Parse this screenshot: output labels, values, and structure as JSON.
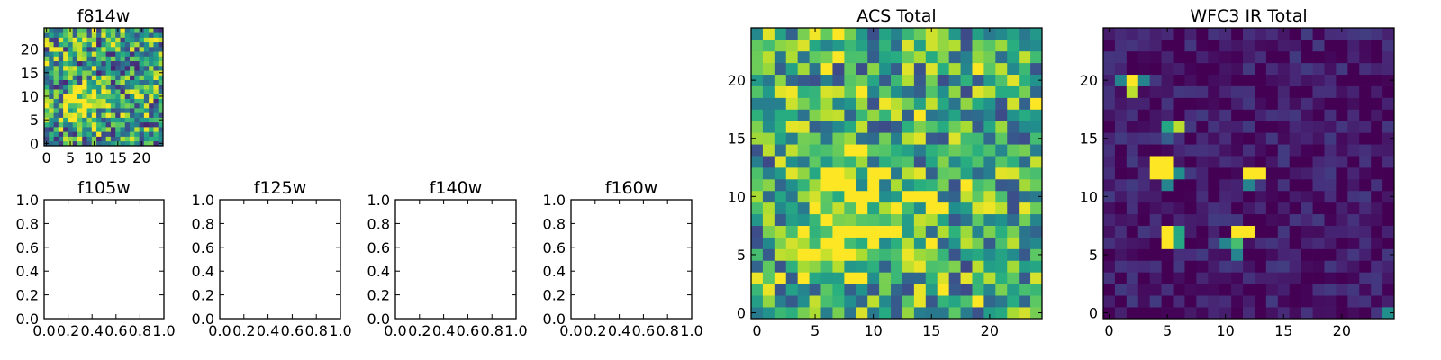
{
  "chart_data": [
    {
      "type": "heatmap",
      "title": "f814w",
      "size": 25,
      "xticks": [
        "0",
        "5",
        "10",
        "15",
        "20"
      ],
      "yticks": [
        "0",
        "5",
        "10",
        "15",
        "20"
      ],
      "source": {
        "kind": "noise",
        "seed": 11,
        "base": 0.55,
        "spread": 0.45,
        "blobs": [
          {
            "x": 7,
            "y": 8,
            "r": 2.2,
            "amp": 0.65
          },
          {
            "x": 11,
            "y": 10,
            "r": 1.5,
            "amp": 0.3
          }
        ]
      }
    },
    {
      "type": "heatmap",
      "title": "ACS Total",
      "size": 25,
      "xticks": [
        "0",
        "5",
        "10",
        "15",
        "20"
      ],
      "yticks": [
        "0",
        "5",
        "10",
        "15",
        "20"
      ],
      "source": {
        "kind": "noise",
        "seed": 23,
        "base": 0.62,
        "spread": 0.4,
        "blobs": [
          {
            "x": 7.5,
            "y": 7.5,
            "r": 2.4,
            "amp": 0.55
          },
          {
            "x": 7,
            "y": 13,
            "r": 1.8,
            "amp": 0.3
          },
          {
            "x": 13,
            "y": 9,
            "r": 1.6,
            "amp": 0.3
          }
        ]
      }
    },
    {
      "type": "heatmap",
      "title": "WFC3 IR Total",
      "size": 25,
      "xticks": [
        "0",
        "5",
        "10",
        "15",
        "20"
      ],
      "yticks": [
        "0",
        "5",
        "10",
        "15",
        "20"
      ],
      "source": {
        "kind": "noise",
        "seed": 37,
        "base": 0.06,
        "spread": 0.12,
        "hot": [
          [
            2,
            20,
            1.0
          ],
          [
            1,
            20,
            0.45
          ],
          [
            3,
            20,
            0.45
          ],
          [
            2,
            19,
            0.9
          ],
          [
            5,
            16,
            0.6
          ],
          [
            6,
            16,
            0.9
          ],
          [
            5,
            15,
            0.3
          ],
          [
            4,
            13,
            1.0
          ],
          [
            5,
            13,
            1.0
          ],
          [
            4,
            12,
            1.0
          ],
          [
            5,
            12,
            1.0
          ],
          [
            6,
            12,
            0.5
          ],
          [
            5,
            11,
            0.45
          ],
          [
            12,
            12,
            1.0
          ],
          [
            13,
            12,
            1.0
          ],
          [
            12,
            11,
            0.45
          ],
          [
            5,
            7,
            1.0
          ],
          [
            5,
            6,
            1.0
          ],
          [
            6,
            7,
            0.6
          ],
          [
            6,
            6,
            0.6
          ],
          [
            11,
            7,
            1.0
          ],
          [
            12,
            7,
            1.0
          ],
          [
            11,
            6,
            0.7
          ],
          [
            10,
            6,
            0.45
          ],
          [
            11,
            5,
            0.45
          ],
          [
            24,
            0,
            0.5
          ]
        ]
      }
    },
    {
      "type": "empty",
      "title": "f105w",
      "ticks": [
        "0.0",
        "0.2",
        "0.4",
        "0.6",
        "0.8",
        "1.0"
      ]
    },
    {
      "type": "empty",
      "title": "f125w",
      "ticks": [
        "0.0",
        "0.2",
        "0.4",
        "0.6",
        "0.8",
        "1.0"
      ]
    },
    {
      "type": "empty",
      "title": "f140w",
      "ticks": [
        "0.0",
        "0.2",
        "0.4",
        "0.6",
        "0.8",
        "1.0"
      ]
    },
    {
      "type": "empty",
      "title": "f160w",
      "ticks": [
        "0.0",
        "0.2",
        "0.4",
        "0.6",
        "0.8",
        "1.0"
      ]
    }
  ],
  "colormap": [
    "#440154",
    "#472c7a",
    "#3b518b",
    "#2c718e",
    "#21908d",
    "#27ad81",
    "#5cc863",
    "#aadc32",
    "#fde725"
  ]
}
